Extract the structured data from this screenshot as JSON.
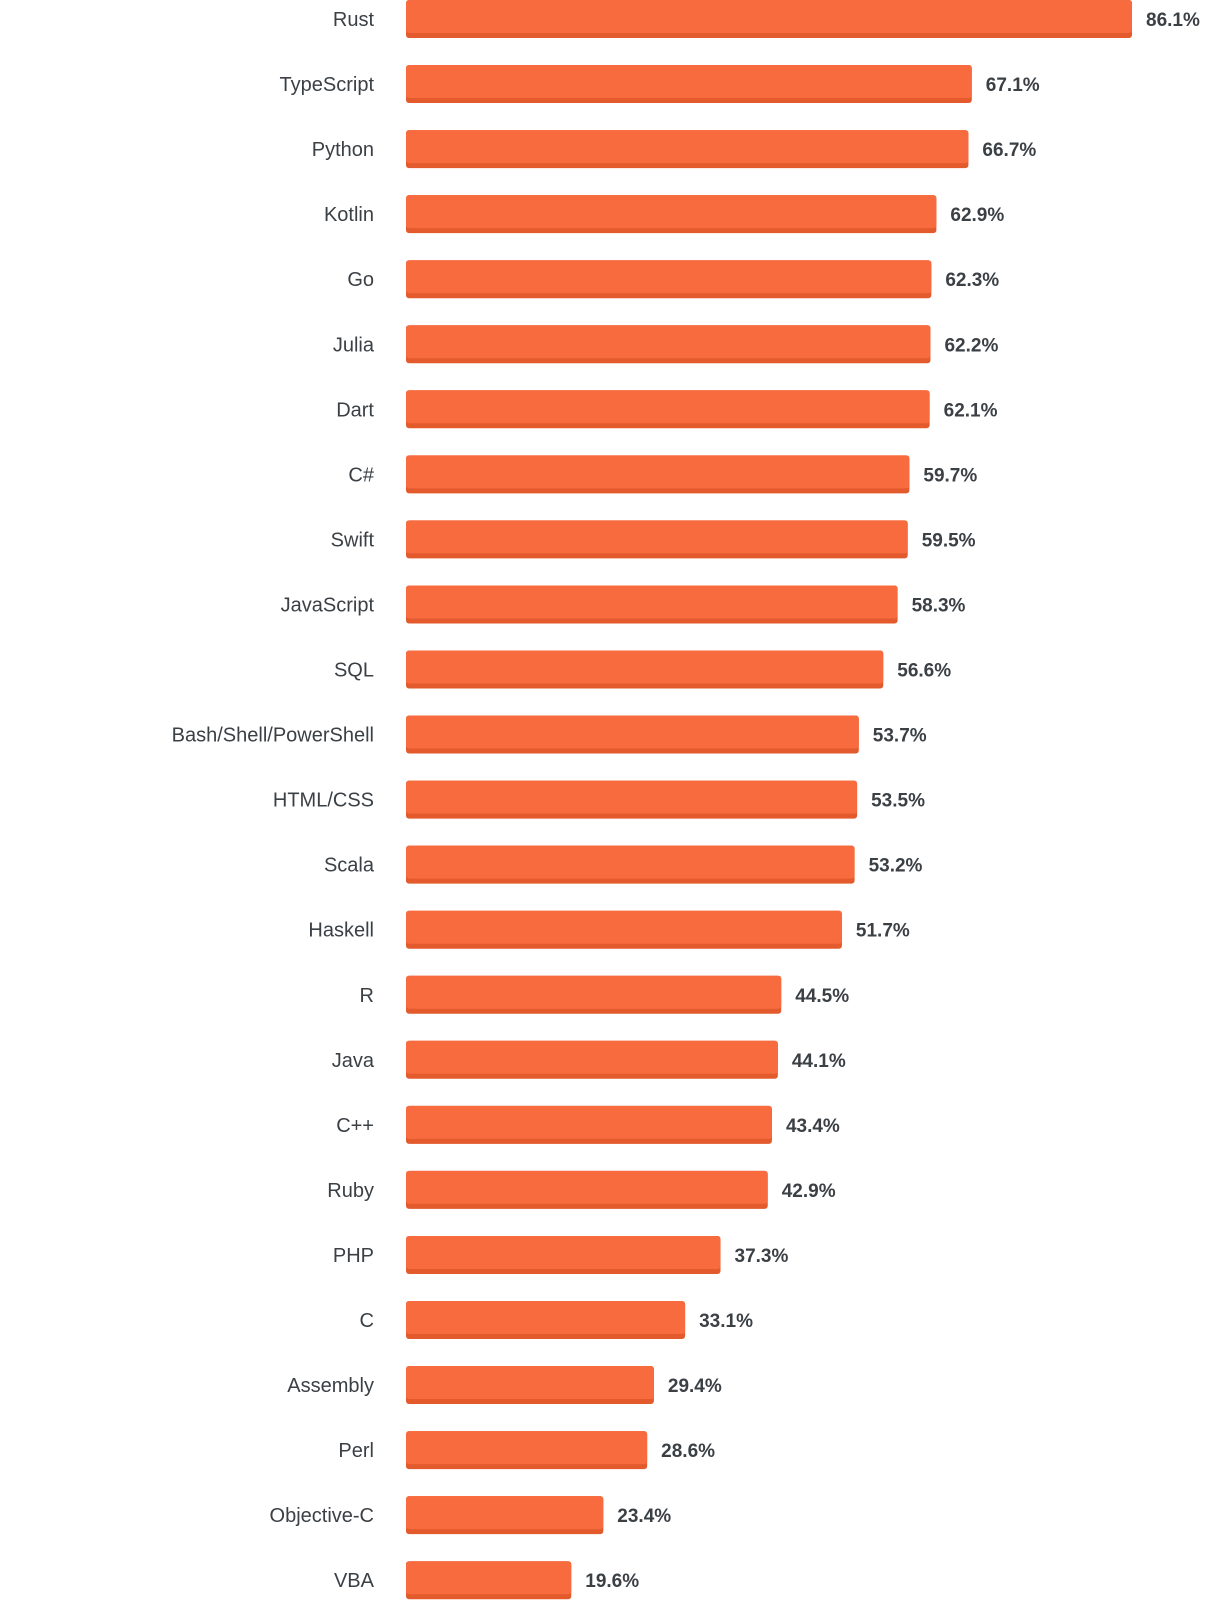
{
  "chart_data": {
    "type": "bar",
    "orientation": "horizontal",
    "categories": [
      "Rust",
      "TypeScript",
      "Python",
      "Kotlin",
      "Go",
      "Julia",
      "Dart",
      "C#",
      "Swift",
      "JavaScript",
      "SQL",
      "Bash/Shell/PowerShell",
      "HTML/CSS",
      "Scala",
      "Haskell",
      "R",
      "Java",
      "C++",
      "Ruby",
      "PHP",
      "C",
      "Assembly",
      "Perl",
      "Objective-C",
      "VBA"
    ],
    "values": [
      86.1,
      67.1,
      66.7,
      62.9,
      62.3,
      62.2,
      62.1,
      59.7,
      59.5,
      58.3,
      56.6,
      53.7,
      53.5,
      53.2,
      51.7,
      44.5,
      44.1,
      43.4,
      42.9,
      37.3,
      33.1,
      29.4,
      28.6,
      23.4,
      19.6
    ],
    "value_labels": [
      "86.1%",
      "67.1%",
      "66.7%",
      "62.9%",
      "62.3%",
      "62.2%",
      "62.1%",
      "59.7%",
      "59.5%",
      "58.3%",
      "56.6%",
      "53.7%",
      "53.5%",
      "53.2%",
      "51.7%",
      "44.5%",
      "44.1%",
      "43.4%",
      "42.9%",
      "37.3%",
      "33.1%",
      "29.4%",
      "28.6%",
      "23.4%",
      "19.6%"
    ],
    "xlim": [
      0,
      86.1
    ],
    "title": "",
    "xlabel": "",
    "ylabel": "",
    "grid": false,
    "legend": "none",
    "bar_color": "#f76b3e",
    "bar_shadow_color": "#e35a2d",
    "label_color": "#3b4045"
  }
}
